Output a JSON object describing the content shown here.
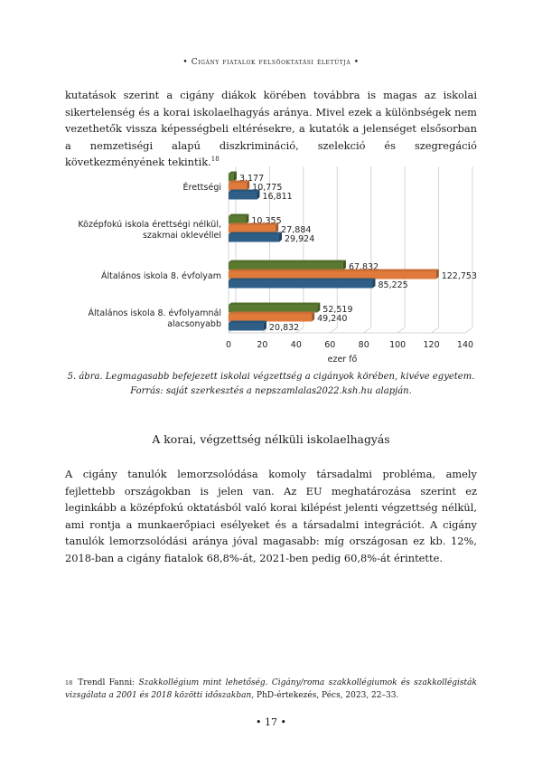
{
  "header": {
    "running_title": "• Cigány fiatalok felsőoktatási életútja •"
  },
  "paragraph1": {
    "text": "kutatások szerint a cigány diákok körében továbbra is magas az iskolai sikertelenség és a korai iskolaelhagyás aránya. Mivel ezek a különbségek nem vezethetők vissza képességbeli eltérésekre, a kutatók a jelenséget elsősorban a nemzetiségi alapú diszkrimináció, szelekció és szegregáció következményének tekintik.",
    "footnote_ref": "18"
  },
  "chart_data": {
    "type": "bar",
    "orientation": "horizontal",
    "categories": [
      [
        "Érettségi"
      ],
      [
        "Középfokú iskola érettségi nélkül,",
        "szakmai oklevéllel"
      ],
      [
        "Általános iskola 8. évfolyam"
      ],
      [
        "Általános iskola 8. évfolyamnál",
        "alacsonyabb"
      ]
    ],
    "series": [
      {
        "values": [
          3.177,
          10.355,
          67.832,
          52.519
        ],
        "labels": [
          "3,177",
          "10,355",
          "67,832",
          "52,519"
        ]
      },
      {
        "values": [
          10.775,
          27.884,
          122.753,
          49.24
        ],
        "labels": [
          "10,775",
          "27,884",
          "122,753",
          "49,240"
        ]
      },
      {
        "values": [
          16.811,
          29.924,
          85.225,
          20.832
        ],
        "labels": [
          "16,811",
          "29,924",
          "85,225",
          "20,832"
        ]
      }
    ],
    "xlim": [
      0,
      140
    ],
    "xticks": [
      "0",
      "20",
      "40",
      "60",
      "80",
      "100",
      "120",
      "140"
    ],
    "xlabel": "ezer fő",
    "grid": true
  },
  "colors": {
    "series1": "#5a7a32",
    "series2": "#e07a3a",
    "series3": "#2f5f87",
    "grid": "#d5d5d5"
  },
  "figure": {
    "caption_line1": "5. ábra. Legmagasabb befejezett iskolai végzettség a cigányok körében, kivéve egyetem.",
    "caption_line2": "Forrás: saját szerkesztés a nepszamlalas2022.ksh.hu alapján."
  },
  "section": {
    "title": "A korai, végzettség nélküli iskolaelhagyás"
  },
  "paragraph2": {
    "text": "A cigány tanulók lemorzsolódása komoly társadalmi probléma, amely fejlettebb országokban is jelen van. Az EU meghatározása szerint ez leginkább a középfokú oktatásból való korai kilépést jelenti végzettség nélkül, ami rontja a munkaerőpiaci esélyeket és a társadalmi integrációt. A cigány tanulók lemorzsolódási aránya jóval magasabb: míg országosan ez kb. 12%, 2018-ban a cigány fiatalok 68,8%-át, 2021-ben pedig 60,8%-át érintette."
  },
  "footnote": {
    "number": "18",
    "author": "Trendl Fanni:",
    "title": "Szakkollégium mint lehetőség. Cigány/roma szakkollégiumok és szakkollégisták vizsgálata a 2001 és 2018 közötti időszakban,",
    "rest": "PhD-értekezés, Pécs, 2023, 22–33."
  },
  "page": {
    "number": "• 17 •"
  }
}
